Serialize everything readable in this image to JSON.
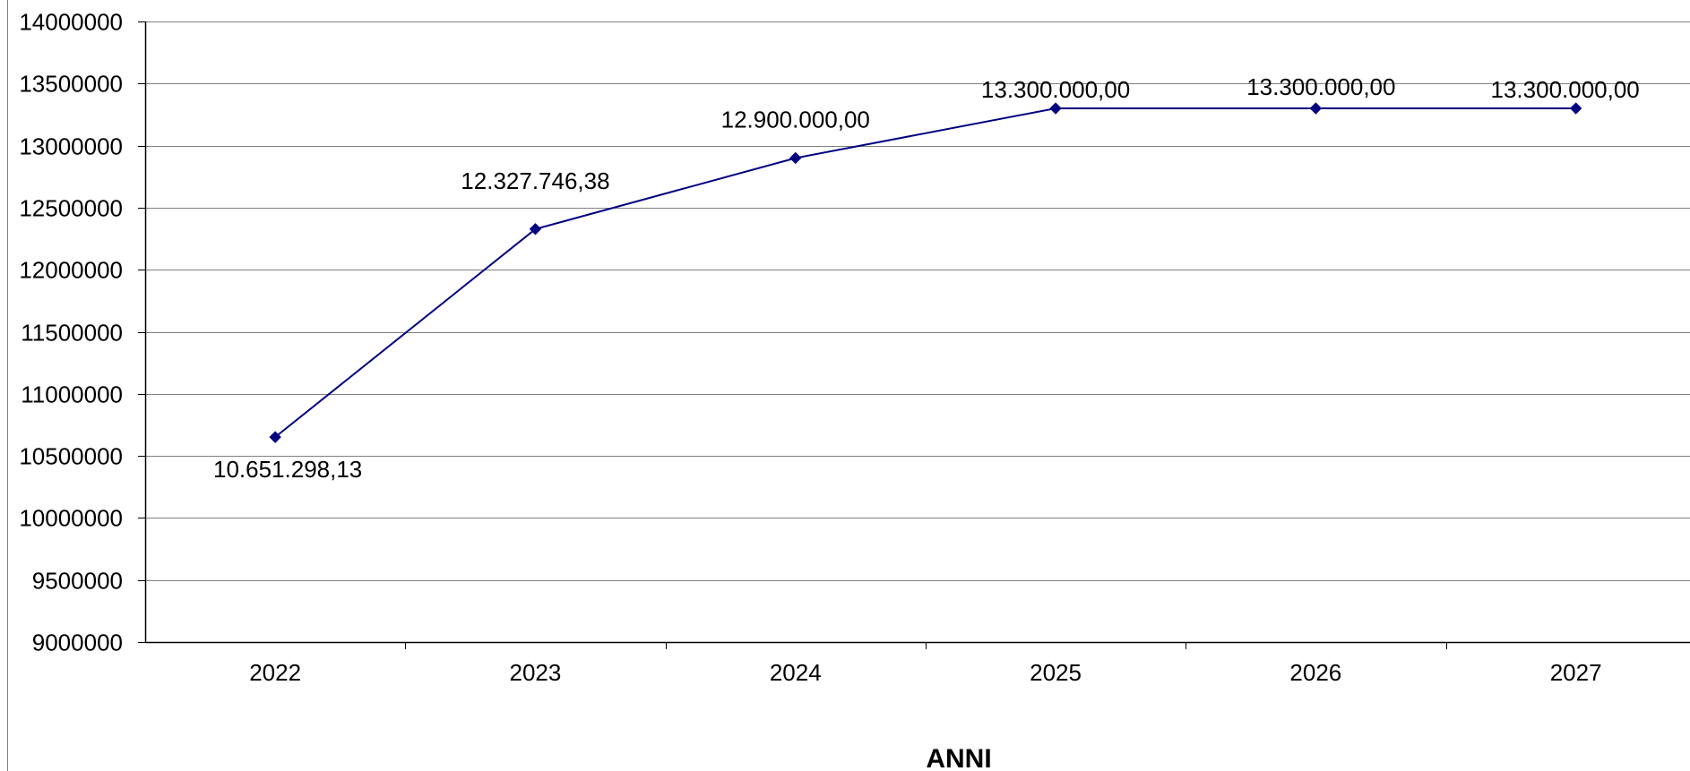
{
  "chart_data": {
    "type": "line",
    "categories": [
      "2022",
      "2023",
      "2024",
      "2025",
      "2026",
      "2027"
    ],
    "series": [
      {
        "values": [
          10651298.13,
          12327746.38,
          12900000.0,
          13300000.0,
          13300000.0,
          13300000.0
        ],
        "labels": [
          "10.651.298,13",
          "12.327.746,38",
          "12.900.000,00",
          "13.300.000,00",
          "13.300.000,00",
          "13.300.000,00"
        ],
        "color": "#000080",
        "marker": "diamond"
      }
    ],
    "title": "",
    "xlabel": "ANNI",
    "ylabel": "",
    "ylim": [
      9000000,
      14000000
    ],
    "ytick_step": 500000,
    "yticks": [
      "14000000",
      "13500000",
      "13000000",
      "12500000",
      "12000000",
      "11500000",
      "11000000",
      "10500000",
      "10000000",
      "9500000",
      "9000000"
    ],
    "grid": true,
    "legend": "none",
    "colors": {
      "line": "#000080",
      "grid": "#808080",
      "axis": "#000000"
    }
  }
}
